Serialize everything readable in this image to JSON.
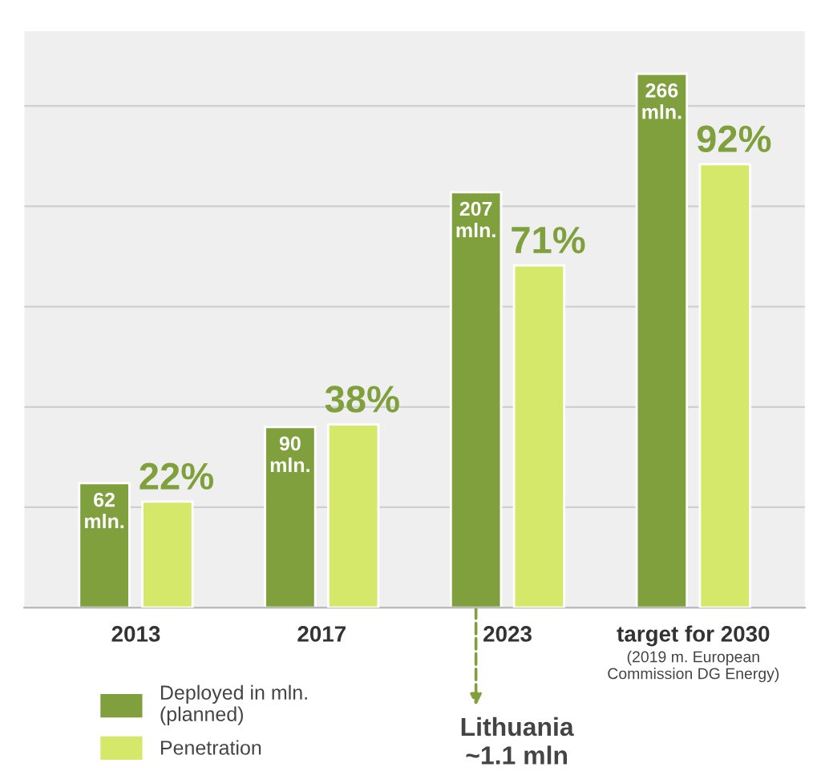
{
  "chart_data": {
    "type": "bar",
    "categories": [
      "2013",
      "2017",
      "2023",
      "target for 2030"
    ],
    "series": [
      {
        "name": "Deployed in mln.\n(planned)",
        "color": "#7fa03c",
        "values": [
          62,
          90,
          207,
          266
        ],
        "value_labels": [
          "62 mln.",
          "90 mln.",
          "207 mln.",
          "266 mln."
        ]
      },
      {
        "name": "Penetration",
        "color": "#d6e86a",
        "axis": "y2",
        "values": [
          22,
          38,
          71,
          92
        ],
        "value_labels": [
          "22%",
          "38%",
          "71%",
          "92%"
        ]
      }
    ],
    "annotations": [
      "(2019 m. European\nCommission DG Energy)",
      "Lithuania\n~1.1 mln"
    ],
    "grid": "y",
    "legend": "bottom left",
    "tick_labels": "x"
  }
}
